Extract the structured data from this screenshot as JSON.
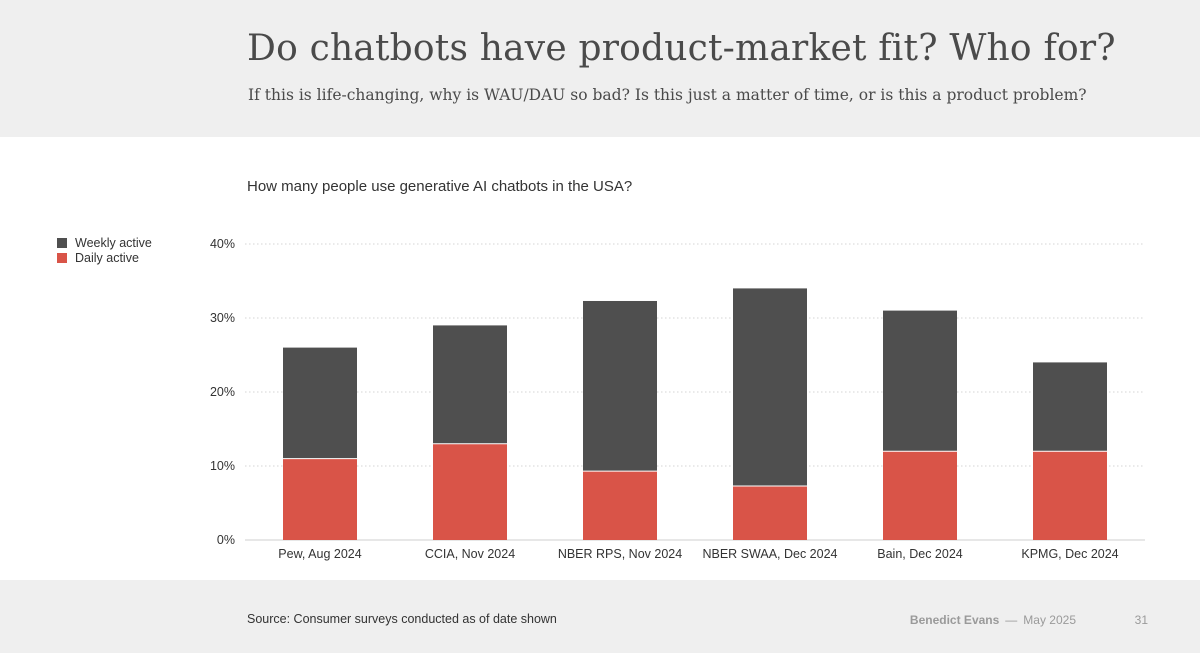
{
  "header": {
    "title": "Do chatbots have product-market fit? Who for?",
    "subtitle": "If this is life-changing, why is WAU/DAU so bad? Is this just a matter of time, or is this a product problem?"
  },
  "chart_data": {
    "type": "bar",
    "stacked": true,
    "title": "How many people use generative AI chatbots in the USA?",
    "categories": [
      "Pew, Aug 2024",
      "CCIA, Nov 2024",
      "NBER RPS, Nov 2024",
      "NBER SWAA, Dec 2024",
      "Bain, Dec 2024",
      "KPMG, Dec 2024"
    ],
    "series": [
      {
        "name": "Weekly active",
        "values": [
          26,
          29,
          32.3,
          34,
          31,
          24
        ],
        "color": "#4f4f4f"
      },
      {
        "name": "Daily active",
        "values": [
          11,
          13,
          9.3,
          7.3,
          12,
          12
        ],
        "color": "#d95448"
      }
    ],
    "ylim": [
      0,
      40
    ],
    "yticks": [
      "0%",
      "10%",
      "20%",
      "30%",
      "40%"
    ],
    "grid": true,
    "legend_position": "left"
  },
  "footer": {
    "source": "Source: Consumer surveys conducted as of date shown",
    "author": "Benedict Evans",
    "separator": "—",
    "date": "May 2025",
    "page_number": "31"
  }
}
